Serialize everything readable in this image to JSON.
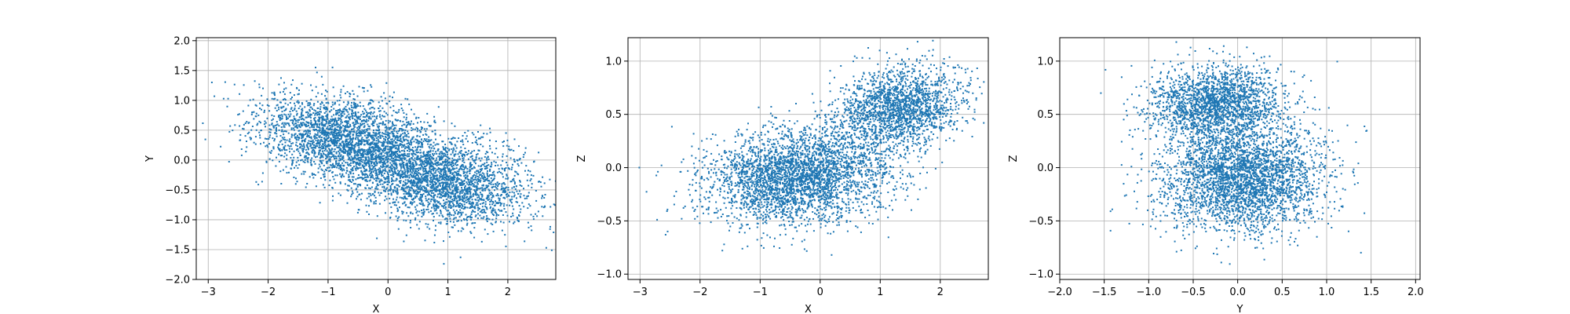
{
  "chart_data": [
    {
      "type": "scatter",
      "xlabel": "X",
      "ylabel": "Y",
      "xlim": [
        -3.2,
        2.8
      ],
      "ylim": [
        -2.0,
        2.05
      ],
      "xticks": [
        -3,
        -2,
        -1,
        0,
        1,
        2
      ],
      "yticks": [
        -2.0,
        -1.5,
        -1.0,
        -0.5,
        0.0,
        0.5,
        1.0,
        1.5,
        2.0
      ],
      "grid": true,
      "marker_color": "#1f77b4",
      "clusters": [
        {
          "cx": -0.7,
          "cy": 0.35,
          "sx": 0.75,
          "sy": 0.38,
          "rho": -0.35,
          "n": 2600
        },
        {
          "cx": 0.9,
          "cy": -0.35,
          "sx": 0.75,
          "sy": 0.38,
          "rho": -0.35,
          "n": 2600
        }
      ]
    },
    {
      "type": "scatter",
      "xlabel": "X",
      "ylabel": "Z",
      "xlim": [
        -3.2,
        2.8
      ],
      "ylim": [
        -1.05,
        1.22
      ],
      "xticks": [
        -3,
        -2,
        -1,
        0,
        1,
        2
      ],
      "yticks": [
        -1.0,
        -0.5,
        0.0,
        0.5,
        1.0
      ],
      "grid": true,
      "marker_color": "#1f77b4",
      "clusters": [
        {
          "cx": -0.4,
          "cy": -0.1,
          "sx": 0.75,
          "sy": 0.22,
          "rho": 0.1,
          "n": 3200
        },
        {
          "cx": 1.3,
          "cy": 0.55,
          "sx": 0.55,
          "sy": 0.2,
          "rho": 0.2,
          "n": 2000
        }
      ]
    },
    {
      "type": "scatter",
      "xlabel": "Y",
      "ylabel": "Z",
      "xlim": [
        -2.0,
        2.05
      ],
      "ylim": [
        -1.05,
        1.22
      ],
      "xticks": [
        -2.0,
        -1.5,
        -1.0,
        -0.5,
        0.0,
        0.5,
        1.0,
        1.5,
        2.0
      ],
      "yticks": [
        -1.0,
        -0.5,
        0.0,
        0.5,
        1.0
      ],
      "grid": true,
      "marker_color": "#1f77b4",
      "clusters": [
        {
          "cx": -0.25,
          "cy": 0.6,
          "sx": 0.38,
          "sy": 0.18,
          "rho": 0.0,
          "n": 2000
        },
        {
          "cx": 0.05,
          "cy": -0.1,
          "sx": 0.45,
          "sy": 0.25,
          "rho": 0.0,
          "n": 3200
        }
      ]
    }
  ]
}
